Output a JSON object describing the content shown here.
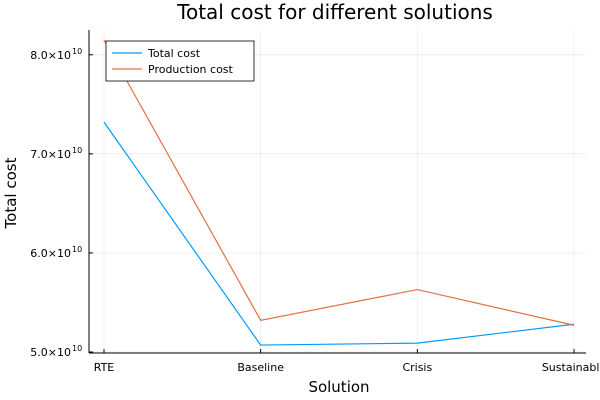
{
  "chart_data": {
    "type": "line",
    "title": "Total cost for different solutions",
    "xlabel": "Solution",
    "ylabel": "Total cost",
    "categories": [
      "RTE",
      "Baseline",
      "Crisis",
      "Sustainable"
    ],
    "series": [
      {
        "name": "Total cost",
        "color": "#009AFA",
        "values": [
          73200000000.0,
          50700000000.0,
          50900000000.0,
          52800000000.0
        ]
      },
      {
        "name": "Production cost",
        "color": "#E26F46",
        "values": [
          81500000000.0,
          53200000000.0,
          56300000000.0,
          52700000000.0
        ]
      }
    ],
    "ylim": [
      49900000000.0,
      82500000000.0
    ],
    "yticks": [
      {
        "value": 50000000000.0,
        "mantissa": "5.0",
        "base": "×10",
        "exp": "10"
      },
      {
        "value": 60000000000.0,
        "mantissa": "6.0",
        "base": "×10",
        "exp": "10"
      },
      {
        "value": 70000000000.0,
        "mantissa": "7.0",
        "base": "×10",
        "exp": "10"
      },
      {
        "value": 80000000000.0,
        "mantissa": "8.0",
        "base": "×10",
        "exp": "10"
      }
    ],
    "grid": true,
    "legend_position": "top-left"
  }
}
